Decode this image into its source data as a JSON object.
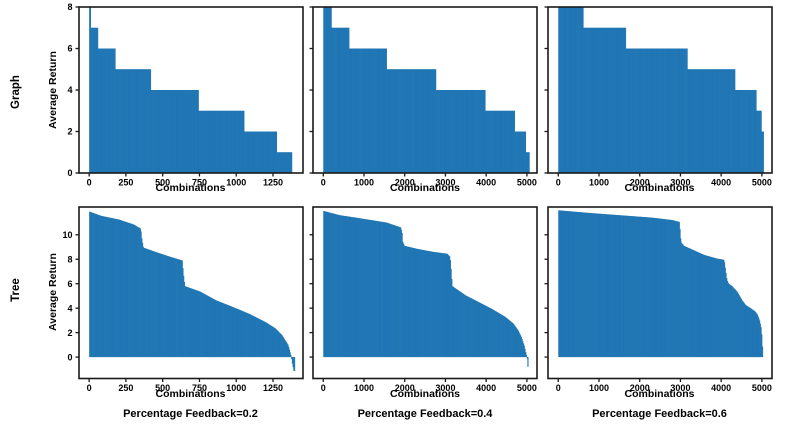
{
  "figure": {
    "background": "#ffffff",
    "fill_color": "#2177b4",
    "axis_color": "#1a1a1a",
    "row_labels": [
      "Graph",
      "Tree"
    ],
    "ylabel": "Average Return",
    "xlabel": "Combinations",
    "captions": [
      "Percentage Feedback=0.2",
      "Percentage Feedback=0.4",
      "Percentage Feedback=0.6"
    ]
  },
  "chart_data": [
    {
      "type": "bar",
      "row": "Graph",
      "caption": "Percentage Feedback=0.2",
      "xlabel": "Combinations",
      "ylabel": "Average Return",
      "interp": "step",
      "xlim": [
        -69,
        1454
      ],
      "ylim": [
        0,
        8
      ],
      "xticks": [
        0,
        250,
        500,
        750,
        1000,
        1250
      ],
      "yticks": [
        0,
        2,
        4,
        6,
        8
      ],
      "ytick_labels_visible": true,
      "points": [
        [
          0,
          8
        ],
        [
          10,
          7
        ],
        [
          58,
          6
        ],
        [
          177,
          5
        ],
        [
          420,
          4
        ],
        [
          741,
          3
        ],
        [
          1054,
          2
        ],
        [
          1277,
          1
        ],
        [
          1378,
          0
        ]
      ]
    },
    {
      "type": "bar",
      "row": "Graph",
      "caption": "Percentage Feedback=0.4",
      "xlabel": "Combinations",
      "ylabel": "Average Return",
      "interp": "step",
      "xlim": [
        -252,
        5248
      ],
      "ylim": [
        0,
        8
      ],
      "xticks": [
        0,
        1000,
        2000,
        3000,
        4000,
        5000
      ],
      "yticks": [
        0,
        2,
        4,
        6,
        8
      ],
      "ytick_labels_visible": false,
      "points": [
        [
          0,
          8
        ],
        [
          200,
          7
        ],
        [
          634,
          6
        ],
        [
          1561,
          5
        ],
        [
          2766,
          4
        ],
        [
          3968,
          3
        ],
        [
          4700,
          2
        ],
        [
          4976,
          1
        ],
        [
          5059,
          0
        ]
      ]
    },
    {
      "type": "bar",
      "row": "Graph",
      "caption": "Percentage Feedback=0.6",
      "xlabel": "Combinations",
      "ylabel": "Average Return",
      "interp": "step",
      "xlim": [
        -252,
        5248
      ],
      "ylim": [
        0,
        8
      ],
      "xticks": [
        0,
        1000,
        2000,
        3000,
        4000,
        5000
      ],
      "yticks": [
        0,
        2,
        4,
        6,
        8
      ],
      "ytick_labels_visible": false,
      "points": [
        [
          0,
          8
        ],
        [
          608,
          7
        ],
        [
          1661,
          6
        ],
        [
          3161,
          5
        ],
        [
          4335,
          4
        ],
        [
          4863,
          3
        ],
        [
          4985,
          2
        ],
        [
          5040,
          0
        ]
      ]
    },
    {
      "type": "bar",
      "row": "Tree",
      "caption": "Percentage Feedback=0.2",
      "xlabel": "Combinations",
      "ylabel": "Average Return",
      "interp": "linear",
      "xlim": [
        -69,
        1454
      ],
      "ylim": [
        -1.75,
        12.27
      ],
      "xticks": [
        0,
        250,
        500,
        750,
        1000,
        1250
      ],
      "yticks": [
        0,
        2,
        4,
        6,
        8,
        10
      ],
      "ytick_labels_visible": true,
      "points": [
        [
          0,
          11.9
        ],
        [
          80,
          11.55
        ],
        [
          200,
          11.25
        ],
        [
          300,
          10.85
        ],
        [
          350,
          10.5
        ],
        [
          358,
          9.6
        ],
        [
          368,
          8.95
        ],
        [
          450,
          8.6
        ],
        [
          550,
          8.2
        ],
        [
          632,
          7.9
        ],
        [
          640,
          6.8
        ],
        [
          650,
          5.8
        ],
        [
          755,
          5.35
        ],
        [
          860,
          4.65
        ],
        [
          975,
          4.1
        ],
        [
          1085,
          3.55
        ],
        [
          1200,
          2.85
        ],
        [
          1265,
          2.35
        ],
        [
          1310,
          1.8
        ],
        [
          1352,
          1.0
        ],
        [
          1372,
          0.1
        ],
        [
          1380,
          -0.5
        ],
        [
          1390,
          -1.1
        ],
        [
          1398,
          -1.15
        ]
      ]
    },
    {
      "type": "bar",
      "row": "Tree",
      "caption": "Percentage Feedback=0.4",
      "xlabel": "Combinations",
      "ylabel": "Average Return",
      "interp": "linear",
      "xlim": [
        -252,
        5248
      ],
      "ylim": [
        -1.75,
        12.27
      ],
      "xticks": [
        0,
        1000,
        2000,
        3000,
        4000,
        5000
      ],
      "yticks": [
        0,
        2,
        4,
        6,
        8,
        10
      ],
      "ytick_labels_visible": false,
      "points": [
        [
          0,
          11.95
        ],
        [
          400,
          11.6
        ],
        [
          800,
          11.4
        ],
        [
          1550,
          11.0
        ],
        [
          1900,
          10.6
        ],
        [
          1930,
          10.2
        ],
        [
          1950,
          9.4
        ],
        [
          1990,
          9.1
        ],
        [
          2300,
          8.85
        ],
        [
          2700,
          8.6
        ],
        [
          3040,
          8.45
        ],
        [
          3110,
          8.2
        ],
        [
          3140,
          7.0
        ],
        [
          3165,
          5.8
        ],
        [
          3490,
          5.05
        ],
        [
          3810,
          4.5
        ],
        [
          4130,
          3.95
        ],
        [
          4460,
          3.3
        ],
        [
          4660,
          2.75
        ],
        [
          4780,
          2.2
        ],
        [
          4860,
          1.65
        ],
        [
          4930,
          0.95
        ],
        [
          4975,
          0.3
        ],
        [
          5000,
          0.0
        ],
        [
          5015,
          -0.6
        ],
        [
          5030,
          -1.1
        ]
      ]
    },
    {
      "type": "bar",
      "row": "Tree",
      "caption": "Percentage Feedback=0.6",
      "xlabel": "Combinations",
      "ylabel": "Average Return",
      "interp": "linear",
      "xlim": [
        -252,
        5248
      ],
      "ylim": [
        -1.75,
        12.27
      ],
      "xticks": [
        0,
        1000,
        2000,
        3000,
        4000,
        5000
      ],
      "yticks": [
        0,
        2,
        4,
        6,
        8,
        10
      ],
      "ytick_labels_visible": false,
      "points": [
        [
          0,
          12.0
        ],
        [
          700,
          11.8
        ],
        [
          1500,
          11.6
        ],
        [
          2300,
          11.4
        ],
        [
          2800,
          11.2
        ],
        [
          2970,
          11.05
        ],
        [
          2990,
          10.3
        ],
        [
          3010,
          9.4
        ],
        [
          3080,
          9.1
        ],
        [
          3580,
          8.35
        ],
        [
          3900,
          8.05
        ],
        [
          4070,
          7.95
        ],
        [
          4110,
          7.0
        ],
        [
          4140,
          6.3
        ],
        [
          4180,
          6.0
        ],
        [
          4250,
          5.85
        ],
        [
          4390,
          5.35
        ],
        [
          4510,
          4.65
        ],
        [
          4600,
          4.25
        ],
        [
          4720,
          4.0
        ],
        [
          4840,
          3.7
        ],
        [
          4890,
          3.45
        ],
        [
          4940,
          3.0
        ],
        [
          4975,
          2.45
        ],
        [
          5000,
          1.65
        ],
        [
          5012,
          0.8
        ],
        [
          5020,
          0
        ]
      ]
    }
  ]
}
